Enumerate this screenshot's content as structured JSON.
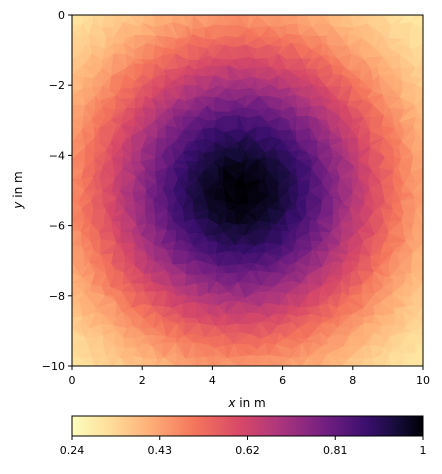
{
  "chart_data": {
    "type": "heatmap",
    "title": "",
    "xlabel_var": "x",
    "xlabel_rest": " in m",
    "ylabel_var": "y",
    "ylabel_rest": " in m",
    "xlim": [
      0,
      10
    ],
    "ylim": [
      -10,
      0
    ],
    "xticks": [
      0,
      2,
      4,
      6,
      8,
      10
    ],
    "xtick_labels": [
      "0",
      "2",
      "4",
      "6",
      "8",
      "10"
    ],
    "yticks": [
      0,
      -2,
      -4,
      -6,
      -8,
      -10
    ],
    "ytick_labels": [
      "0",
      "−2",
      "−4",
      "−6",
      "−8",
      "−10"
    ],
    "field": {
      "center": [
        4.8,
        -5.0
      ],
      "value_at_center": 1.0,
      "value_at_corner": 0.24,
      "description_free": true
    },
    "colorbar": {
      "colormap": "magma_r",
      "range": [
        0.24,
        1.0
      ],
      "ticks": [
        0.24,
        0.43,
        0.62,
        0.81,
        1.0
      ],
      "tick_labels": [
        "0.24",
        "0.43",
        "0.62",
        "0.81",
        "1"
      ],
      "orientation": "horizontal",
      "placement": "bottom"
    },
    "grid": false
  }
}
